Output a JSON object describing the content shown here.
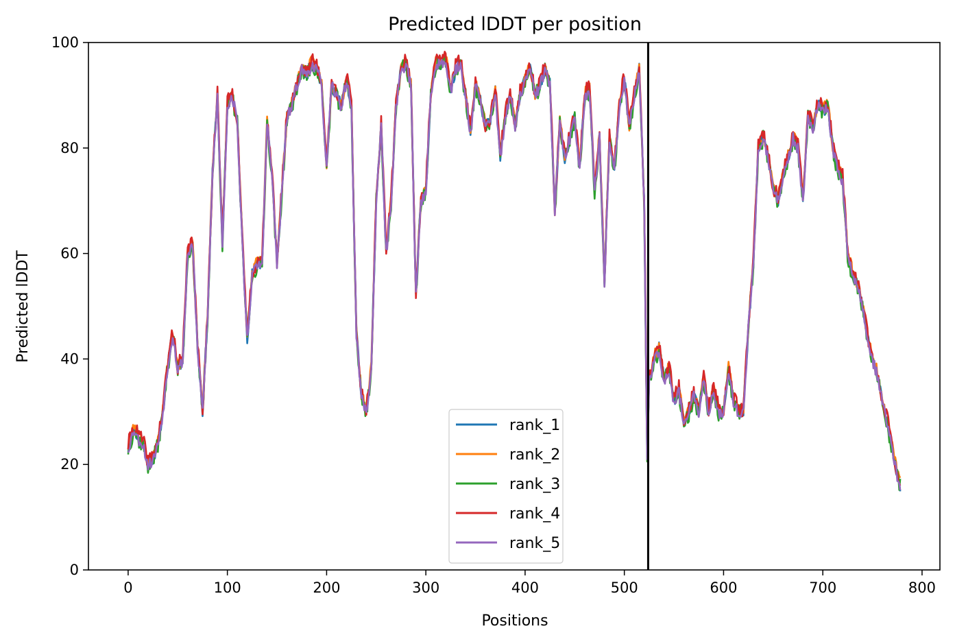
{
  "chart_data": {
    "type": "line",
    "title": "Predicted lDDT per position",
    "xlabel": "Positions",
    "ylabel": "Predicted lDDT",
    "xlim": [
      -40,
      818
    ],
    "ylim": [
      0,
      100
    ],
    "xticks": [
      0,
      100,
      200,
      300,
      400,
      500,
      600,
      700,
      800
    ],
    "yticks": [
      0,
      20,
      40,
      60,
      80,
      100
    ],
    "grid": false,
    "legend_position": "lower center",
    "vline_x": 524,
    "x_range": [
      0,
      778
    ],
    "anchors_x": [
      0,
      6,
      10,
      15,
      20,
      25,
      30,
      35,
      40,
      45,
      50,
      55,
      60,
      65,
      70,
      75,
      80,
      85,
      90,
      95,
      100,
      105,
      110,
      115,
      120,
      125,
      130,
      135,
      140,
      145,
      150,
      155,
      160,
      165,
      170,
      175,
      180,
      185,
      190,
      195,
      200,
      205,
      210,
      215,
      220,
      225,
      230,
      235,
      240,
      245,
      250,
      255,
      260,
      265,
      270,
      275,
      280,
      285,
      290,
      295,
      300,
      305,
      310,
      315,
      320,
      325,
      330,
      335,
      340,
      345,
      350,
      355,
      360,
      365,
      370,
      375,
      380,
      385,
      390,
      395,
      400,
      405,
      410,
      415,
      420,
      425,
      430,
      435,
      440,
      445,
      450,
      455,
      460,
      465,
      470,
      475,
      480,
      485,
      490,
      495,
      500,
      505,
      510,
      515,
      520,
      523,
      525,
      530,
      535,
      540,
      545,
      550,
      555,
      560,
      565,
      570,
      575,
      580,
      585,
      590,
      595,
      600,
      605,
      610,
      615,
      620,
      625,
      630,
      635,
      640,
      645,
      650,
      655,
      660,
      665,
      670,
      675,
      680,
      685,
      690,
      695,
      700,
      705,
      710,
      715,
      720,
      725,
      730,
      735,
      740,
      745,
      750,
      755,
      760,
      765,
      770,
      775,
      778
    ],
    "series": [
      {
        "name": "rank_1",
        "color": "#1f77b4",
        "offset": 0.0,
        "jitter": 1.2,
        "seed": 11
      },
      {
        "name": "rank_2",
        "color": "#ff7f0e",
        "offset": 0.4,
        "jitter": 1.2,
        "seed": 23
      },
      {
        "name": "rank_3",
        "color": "#2ca02c",
        "offset": -0.3,
        "jitter": 1.6,
        "seed": 37
      },
      {
        "name": "rank_4",
        "color": "#d62728",
        "offset": 0.6,
        "jitter": 1.5,
        "seed": 41
      },
      {
        "name": "rank_5",
        "color": "#9467bd",
        "offset": -0.2,
        "jitter": 1.1,
        "seed": 53
      }
    ],
    "base_values": [
      23,
      27,
      25,
      24,
      20,
      21,
      24,
      30,
      39,
      45,
      38,
      40,
      60,
      62,
      42,
      30,
      48,
      75,
      90,
      62,
      88,
      90,
      85,
      62,
      44,
      56,
      58,
      58,
      85,
      75,
      58,
      72,
      86,
      88,
      92,
      95,
      94,
      96,
      95,
      92,
      76,
      92,
      90,
      88,
      93,
      88,
      45,
      33,
      30,
      38,
      70,
      84,
      60,
      70,
      88,
      95,
      96,
      92,
      52,
      70,
      72,
      90,
      96,
      96,
      97,
      91,
      95,
      96,
      90,
      83,
      92,
      89,
      84,
      85,
      91,
      78,
      86,
      90,
      84,
      90,
      93,
      95,
      90,
      92,
      95,
      92,
      68,
      85,
      78,
      82,
      86,
      76,
      90,
      91,
      72,
      82,
      54,
      82,
      76,
      88,
      93,
      84,
      90,
      95,
      70,
      22,
      36,
      40,
      42,
      36,
      38,
      32,
      34,
      28,
      30,
      33,
      30,
      36,
      30,
      34,
      30,
      30,
      38,
      32,
      30,
      30,
      46,
      58,
      80,
      82,
      78,
      72,
      70,
      75,
      78,
      82,
      80,
      70,
      86,
      84,
      88,
      87,
      88,
      80,
      76,
      74,
      60,
      56,
      54,
      50,
      44,
      40,
      37,
      32,
      28,
      23,
      18,
      16
    ]
  },
  "legend": {
    "items": [
      "rank_1",
      "rank_2",
      "rank_3",
      "rank_4",
      "rank_5"
    ]
  }
}
